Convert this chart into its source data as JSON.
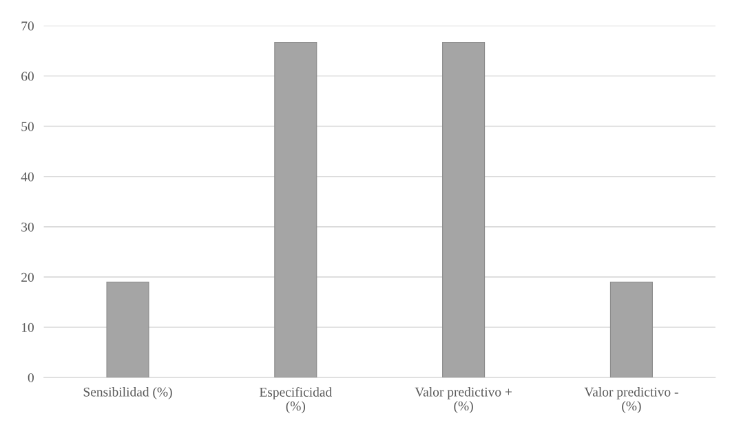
{
  "chart_data": {
    "type": "bar",
    "categories": [
      "Sensibilidad (%)",
      "Especificidad\n(%)",
      "Valor predictivo +\n(%)",
      "Valor predictivo -\n(%)"
    ],
    "values": [
      19,
      66.7,
      66.7,
      19
    ],
    "color": "#a5a5a5",
    "ylim": [
      0,
      70
    ],
    "yticks": [
      0,
      10,
      20,
      30,
      40,
      50,
      60,
      70
    ],
    "grid": "y"
  }
}
